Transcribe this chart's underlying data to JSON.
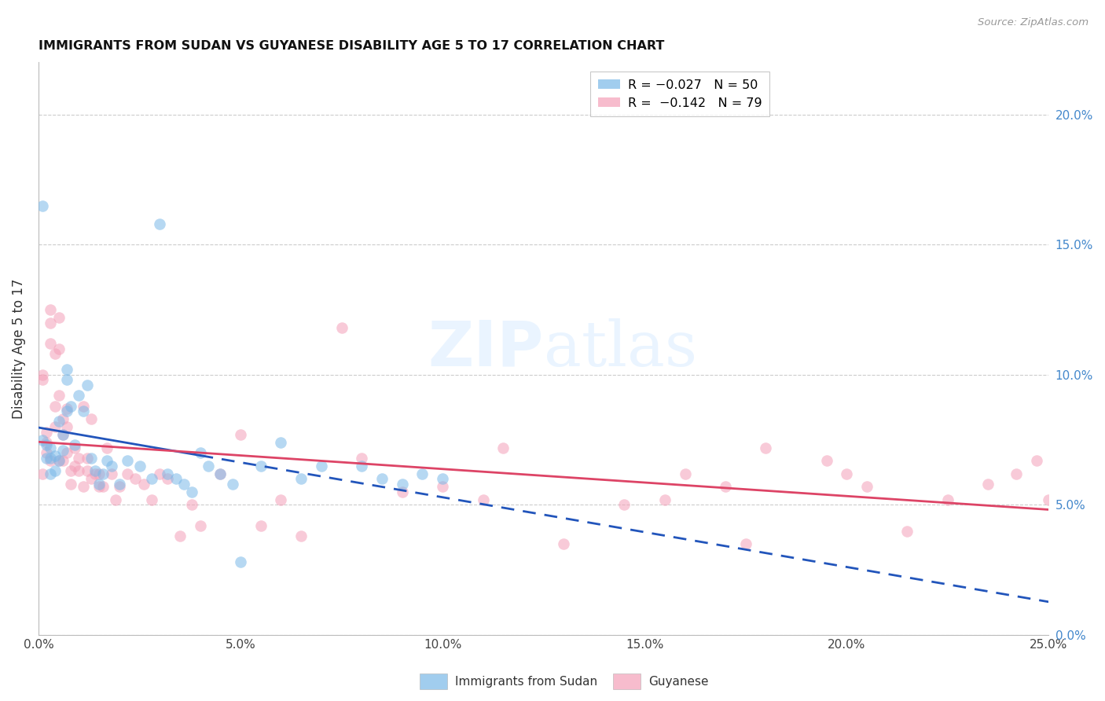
{
  "title": "IMMIGRANTS FROM SUDAN VS GUYANESE DISABILITY AGE 5 TO 17 CORRELATION CHART",
  "source": "Source: ZipAtlas.com",
  "ylabel": "Disability Age 5 to 17",
  "xlim": [
    0.0,
    0.25
  ],
  "ylim": [
    0.0,
    0.22
  ],
  "xticks": [
    0.0,
    0.05,
    0.1,
    0.15,
    0.2,
    0.25
  ],
  "xtick_labels": [
    "0.0%",
    "5.0%",
    "10.0%",
    "15.0%",
    "20.0%",
    "25.0%"
  ],
  "yticks": [
    0.0,
    0.05,
    0.1,
    0.15,
    0.2
  ],
  "ytick_labels_right": [
    "0.0%",
    "5.0%",
    "10.0%",
    "15.0%",
    "20.0%"
  ],
  "blue_color": "#7ab8e8",
  "pink_color": "#f4a0b8",
  "blue_line_color": "#2255bb",
  "pink_line_color": "#dd4466",
  "sudan_x": [
    0.001,
    0.001,
    0.002,
    0.002,
    0.003,
    0.003,
    0.003,
    0.004,
    0.004,
    0.005,
    0.005,
    0.006,
    0.006,
    0.007,
    0.007,
    0.007,
    0.008,
    0.009,
    0.01,
    0.011,
    0.012,
    0.013,
    0.014,
    0.015,
    0.016,
    0.017,
    0.018,
    0.02,
    0.022,
    0.025,
    0.028,
    0.03,
    0.032,
    0.034,
    0.036,
    0.038,
    0.04,
    0.042,
    0.045,
    0.048,
    0.05,
    0.055,
    0.06,
    0.065,
    0.07,
    0.08,
    0.085,
    0.09,
    0.095,
    0.1
  ],
  "sudan_y": [
    0.165,
    0.075,
    0.073,
    0.068,
    0.072,
    0.068,
    0.062,
    0.069,
    0.063,
    0.082,
    0.067,
    0.077,
    0.071,
    0.098,
    0.102,
    0.086,
    0.088,
    0.073,
    0.092,
    0.086,
    0.096,
    0.068,
    0.063,
    0.058,
    0.062,
    0.067,
    0.065,
    0.058,
    0.067,
    0.065,
    0.06,
    0.158,
    0.062,
    0.06,
    0.058,
    0.055,
    0.07,
    0.065,
    0.062,
    0.058,
    0.028,
    0.065,
    0.074,
    0.06,
    0.065,
    0.065,
    0.06,
    0.058,
    0.062,
    0.06
  ],
  "guyanese_x": [
    0.001,
    0.001,
    0.001,
    0.002,
    0.002,
    0.002,
    0.003,
    0.003,
    0.003,
    0.003,
    0.004,
    0.004,
    0.004,
    0.005,
    0.005,
    0.005,
    0.005,
    0.006,
    0.006,
    0.006,
    0.007,
    0.007,
    0.007,
    0.008,
    0.008,
    0.009,
    0.009,
    0.01,
    0.01,
    0.011,
    0.011,
    0.012,
    0.012,
    0.013,
    0.013,
    0.014,
    0.015,
    0.015,
    0.016,
    0.017,
    0.018,
    0.019,
    0.02,
    0.022,
    0.024,
    0.026,
    0.028,
    0.03,
    0.032,
    0.035,
    0.038,
    0.04,
    0.045,
    0.05,
    0.055,
    0.06,
    0.065,
    0.075,
    0.08,
    0.09,
    0.1,
    0.11,
    0.115,
    0.13,
    0.145,
    0.155,
    0.16,
    0.17,
    0.175,
    0.18,
    0.195,
    0.2,
    0.205,
    0.215,
    0.225,
    0.235,
    0.242,
    0.247,
    0.25
  ],
  "guyanese_y": [
    0.098,
    0.1,
    0.062,
    0.07,
    0.074,
    0.078,
    0.125,
    0.12,
    0.112,
    0.067,
    0.108,
    0.088,
    0.08,
    0.092,
    0.122,
    0.11,
    0.067,
    0.083,
    0.077,
    0.067,
    0.087,
    0.08,
    0.07,
    0.058,
    0.063,
    0.065,
    0.072,
    0.068,
    0.063,
    0.057,
    0.088,
    0.063,
    0.068,
    0.06,
    0.083,
    0.062,
    0.062,
    0.057,
    0.057,
    0.072,
    0.062,
    0.052,
    0.057,
    0.062,
    0.06,
    0.058,
    0.052,
    0.062,
    0.06,
    0.038,
    0.05,
    0.042,
    0.062,
    0.077,
    0.042,
    0.052,
    0.038,
    0.118,
    0.068,
    0.055,
    0.057,
    0.052,
    0.072,
    0.035,
    0.05,
    0.052,
    0.062,
    0.057,
    0.035,
    0.072,
    0.067,
    0.062,
    0.057,
    0.04,
    0.052,
    0.058,
    0.062,
    0.067,
    0.052
  ]
}
